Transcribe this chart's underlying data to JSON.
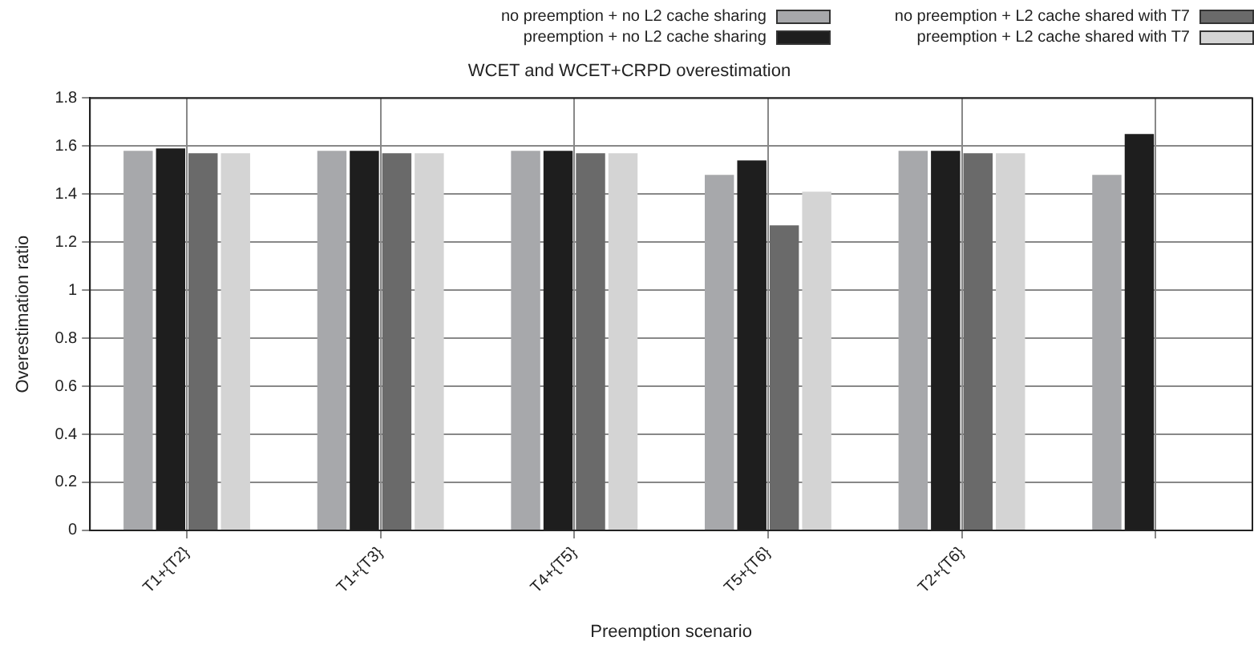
{
  "chart_data": {
    "type": "bar",
    "title": "WCET and WCET+CRPD overestimation",
    "xlabel": "Preemption scenario",
    "ylabel": "Overestimation ratio",
    "categories": [
      "T1+{T2}",
      "T1+{T3}",
      "T4+{T5}",
      "T5+{T6}",
      "T2+{T6}",
      null
    ],
    "series": [
      {
        "name": "no preemption + no L2 cache sharing",
        "color": "#a7a8ab",
        "values": [
          1.58,
          1.58,
          1.58,
          1.48,
          1.58,
          1.48
        ]
      },
      {
        "name": "preemption + no L2 cache sharing",
        "color": "#1e1e1e",
        "values": [
          1.59,
          1.58,
          1.58,
          1.54,
          1.58,
          1.65
        ]
      },
      {
        "name": "no preemption + L2 cache shared with T7",
        "color": "#6a6a6a",
        "values": [
          1.57,
          1.57,
          1.57,
          1.27,
          1.57,
          null
        ]
      },
      {
        "name": "preemption + L2 cache shared with T7",
        "color": "#d4d4d4",
        "values": [
          1.57,
          1.57,
          1.57,
          1.41,
          1.57,
          null
        ]
      }
    ],
    "ylim": [
      0,
      1.8
    ],
    "yticks": [
      0,
      0.2,
      0.4,
      0.6,
      0.8,
      1,
      1.2,
      1.4,
      1.6,
      1.8
    ],
    "grid": true,
    "legend": "top"
  }
}
